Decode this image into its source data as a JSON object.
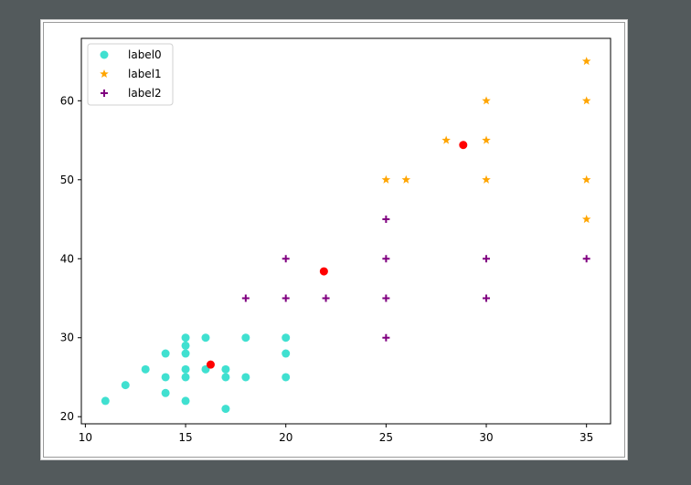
{
  "chart_data": {
    "type": "scatter",
    "title": "",
    "xlabel": "",
    "ylabel": "",
    "xlim": [
      9.8,
      36.2
    ],
    "ylim": [
      19.1,
      67.9
    ],
    "xticks": [
      10,
      15,
      20,
      25,
      30,
      35
    ],
    "yticks": [
      20,
      30,
      40,
      50,
      60
    ],
    "grid": false,
    "legend_position": "top-left",
    "series": [
      {
        "name": "label0",
        "marker": "circle",
        "color": "#40e0d0",
        "points": [
          [
            11,
            22
          ],
          [
            12,
            24
          ],
          [
            13,
            26
          ],
          [
            14,
            23
          ],
          [
            14,
            25
          ],
          [
            14,
            28
          ],
          [
            15,
            22
          ],
          [
            15,
            25
          ],
          [
            15,
            26
          ],
          [
            15,
            28
          ],
          [
            15,
            29
          ],
          [
            15,
            30
          ],
          [
            16,
            26
          ],
          [
            16,
            30
          ],
          [
            17,
            21
          ],
          [
            17,
            25
          ],
          [
            17,
            26
          ],
          [
            18,
            25
          ],
          [
            18,
            30
          ],
          [
            20,
            25
          ],
          [
            20,
            28
          ],
          [
            20,
            30
          ]
        ]
      },
      {
        "name": "label1",
        "marker": "star",
        "color": "#ffa500",
        "points": [
          [
            25,
            50
          ],
          [
            26,
            50
          ],
          [
            28,
            55
          ],
          [
            30,
            50
          ],
          [
            30,
            55
          ],
          [
            30,
            60
          ],
          [
            35,
            45
          ],
          [
            35,
            50
          ],
          [
            35,
            60
          ],
          [
            35,
            65
          ]
        ]
      },
      {
        "name": "label2",
        "marker": "plus",
        "color": "#800080",
        "points": [
          [
            18,
            35
          ],
          [
            20,
            35
          ],
          [
            20,
            40
          ],
          [
            22,
            35
          ],
          [
            25,
            30
          ],
          [
            25,
            35
          ],
          [
            25,
            40
          ],
          [
            25,
            45
          ],
          [
            30,
            35
          ],
          [
            30,
            40
          ],
          [
            35,
            40
          ]
        ]
      }
    ],
    "centroids": {
      "marker": "circle",
      "color": "#ff0000",
      "points": [
        [
          16.25,
          26.6
        ],
        [
          21.9,
          38.4
        ],
        [
          28.85,
          54.4
        ]
      ]
    }
  }
}
